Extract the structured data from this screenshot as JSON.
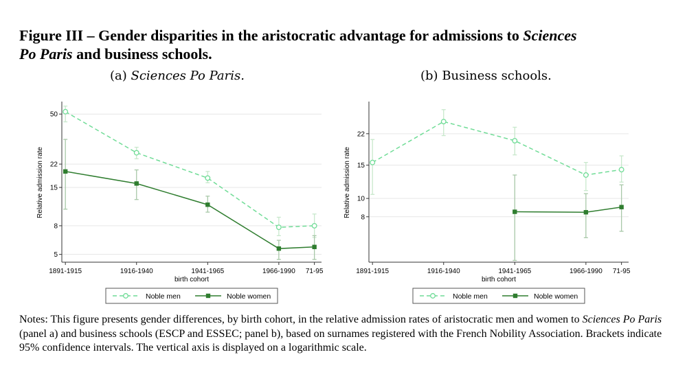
{
  "figure": {
    "title_main": "Figure III – Gender disparities in the aristocratic advantage for admissions to ",
    "title_italic_1": "Sciences",
    "title_italic_2": "Po Paris",
    "title_end": " and business schools."
  },
  "notes": {
    "prefix": "Notes: This figure presents gender differences, by birth cohort, in the relative admission rates of aristocratic men and women to ",
    "italic": "Sciences Po Paris",
    "suffix": " (panel a) and business schools (ESCP and ESSEC; panel b), based on surnames registered with the French Nobility Association. Brackets indicate 95% confidence intervals. The vertical axis is displayed on a logarithmic scale."
  },
  "colors": {
    "men": "#6fdc96",
    "women": "#2f7d2f",
    "grid": "#e6e6e6",
    "ci_men": "#c8e8cc",
    "ci_women": "#a8c8a8"
  },
  "chart_data": [
    {
      "type": "line",
      "panel_label": "(a)",
      "title": "Sciences Po Paris.",
      "ylabel": "Relative admission rate",
      "xlabel": "birth cohort",
      "y_scale": "log",
      "ylim": [
        4.4,
        60
      ],
      "y_ticks": [
        5,
        8,
        15,
        22,
        50
      ],
      "x_ticks": [
        {
          "x": 0,
          "label": "1891-1915"
        },
        {
          "x": 1,
          "label": "1916-1940"
        },
        {
          "x": 2,
          "label": "1941-1965"
        },
        {
          "x": 3,
          "label": "1966-1990"
        },
        {
          "x": 3.5,
          "label": "71-95"
        }
      ],
      "xlim": [
        -0.05,
        3.6
      ],
      "legend": [
        "Noble men",
        "Noble women"
      ],
      "legend_position": "bottom",
      "series": [
        {
          "name": "Noble men",
          "style": "dashed",
          "marker": "hollow-circle",
          "x": [
            0,
            1,
            2,
            3,
            3.5
          ],
          "y": [
            52,
            26.5,
            17.5,
            7.8,
            8.0
          ],
          "ci_low": [
            44,
            24,
            16.2,
            6.8,
            6.6
          ],
          "ci_high": [
            57,
            29,
            19.5,
            9.2,
            9.7
          ]
        },
        {
          "name": "Noble women",
          "style": "solid",
          "marker": "filled-square",
          "x": [
            0,
            1,
            2,
            3,
            3.5
          ],
          "y": [
            19.5,
            16,
            11.3,
            5.5,
            5.65
          ],
          "ci_low": [
            10.5,
            12.3,
            10,
            4.6,
            4.6
          ],
          "ci_high": [
            33,
            20,
            13,
            6.3,
            6.8
          ]
        }
      ]
    },
    {
      "type": "line",
      "panel_label": "(b)",
      "title": "Business schools.",
      "ylabel": "Relative admission rate",
      "xlabel": "birth cohort",
      "y_scale": "log",
      "ylim": [
        4.6,
        32
      ],
      "y_ticks": [
        8,
        10,
        15,
        22
      ],
      "x_ticks": [
        {
          "x": 0,
          "label": "1891-1915"
        },
        {
          "x": 1,
          "label": "1916-1940"
        },
        {
          "x": 2,
          "label": "1941-1965"
        },
        {
          "x": 3,
          "label": "1966-1990"
        },
        {
          "x": 3.5,
          "label": "71-95"
        }
      ],
      "xlim": [
        -0.05,
        3.6
      ],
      "legend": [
        "Noble men",
        "Noble women"
      ],
      "legend_position": "bottom",
      "series": [
        {
          "name": "Noble men",
          "style": "dashed",
          "marker": "hollow-circle",
          "x": [
            0,
            1,
            2,
            3,
            3.5
          ],
          "y": [
            15.5,
            25.5,
            20.2,
            13.3,
            14.2
          ],
          "ci_low": [
            10.5,
            21.5,
            17,
            11,
            12.2
          ],
          "ci_high": [
            20.5,
            29.5,
            23.8,
            15.5,
            16.8
          ]
        },
        {
          "name": "Noble women",
          "style": "solid",
          "marker": "filled-square",
          "x": [
            2,
            3,
            3.5
          ],
          "y": [
            8.5,
            8.45,
            9.0
          ],
          "ci_low": [
            4.7,
            6.2,
            6.7
          ],
          "ci_high": [
            13.3,
            10.6,
            11.8
          ]
        }
      ]
    }
  ]
}
